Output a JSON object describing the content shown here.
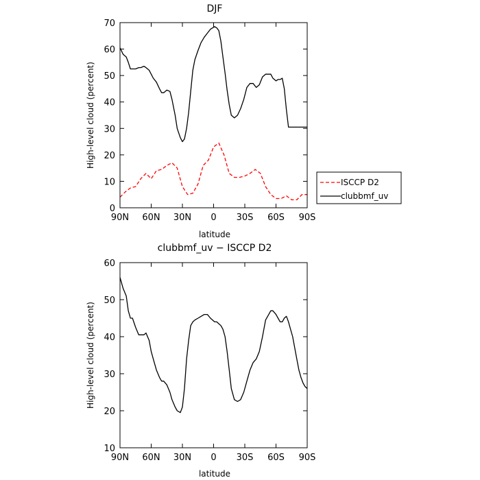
{
  "chart_data": [
    {
      "type": "line",
      "title": "DJF",
      "xlabel": "latitude",
      "ylabel": "High-level cloud (percent)",
      "xlim": [
        90,
        -90
      ],
      "ylim": [
        0,
        70
      ],
      "x_ticks": [
        90,
        60,
        30,
        0,
        -30,
        -60,
        -90
      ],
      "x_tick_labels": [
        "90N",
        "60N",
        "30N",
        "0",
        "30S",
        "60S",
        "90S"
      ],
      "y_ticks": [
        0,
        10,
        20,
        30,
        40,
        50,
        60,
        70
      ],
      "y_tick_labels": [
        "0",
        "10",
        "20",
        "30",
        "40",
        "50",
        "60",
        "70"
      ],
      "legend_position": "right, outside plot",
      "series": [
        {
          "name": "ISCCP D2",
          "color": "#ff0000",
          "dash": "dashed",
          "x": [
            90,
            85,
            80,
            75,
            70,
            65,
            60,
            55,
            50,
            45,
            40,
            35,
            30,
            25,
            20,
            15,
            10,
            5,
            0,
            -5,
            -10,
            -15,
            -20,
            -25,
            -30,
            -35,
            -40,
            -45,
            -50,
            -55,
            -60,
            -65,
            -70,
            -75,
            -80,
            -85,
            -90
          ],
          "values": [
            4,
            6,
            7.5,
            8,
            11,
            13,
            11,
            14,
            14.5,
            16,
            17,
            15,
            8,
            5,
            5.5,
            9,
            16,
            18,
            23,
            24.5,
            20,
            13,
            11.5,
            11.5,
            12,
            13,
            14.5,
            13,
            8,
            5,
            3.5,
            3.5,
            4.5,
            3,
            3,
            5,
            5
          ]
        },
        {
          "name": "clubbmf_uv",
          "color": "#000000",
          "dash": "solid",
          "x": [
            90,
            87,
            84,
            82,
            80,
            78,
            75,
            72,
            70,
            67,
            65,
            62,
            60,
            58,
            55,
            52,
            50,
            48,
            45,
            42,
            40,
            37,
            35,
            32,
            30,
            28,
            26,
            24,
            22,
            20,
            18,
            15,
            12,
            9,
            6,
            3,
            1,
            -1,
            -3,
            -5,
            -7,
            -9,
            -11,
            -13,
            -15,
            -17,
            -20,
            -23,
            -26,
            -29,
            -32,
            -35,
            -38,
            -41,
            -44,
            -47,
            -50,
            -53,
            -55,
            -57,
            -60,
            -62,
            -64,
            -66,
            -68,
            -70,
            -72,
            -74,
            -76,
            -78,
            -80,
            -82,
            -84,
            -86,
            -88,
            -90
          ],
          "values": [
            60.5,
            58,
            57,
            55,
            52.5,
            52.5,
            52.5,
            53,
            53,
            53.5,
            53,
            52,
            50.5,
            49,
            47.5,
            45,
            43.5,
            43.5,
            44.5,
            44,
            41,
            35,
            30,
            26.5,
            25,
            26,
            30,
            36,
            44,
            52,
            56,
            59.5,
            62.5,
            64.5,
            66,
            67.5,
            68,
            68.5,
            68,
            67,
            63,
            57,
            51,
            44.5,
            39,
            35,
            34,
            35,
            37.5,
            41,
            45.5,
            47,
            47,
            45.5,
            46.5,
            49.5,
            50.5,
            50.5,
            50.5,
            49,
            48,
            48.5,
            48.5,
            49,
            45,
            37,
            30.5,
            30.5,
            30.5,
            30.5,
            30.5,
            30.5,
            30.5,
            30.5,
            30.5,
            30.5
          ]
        }
      ]
    },
    {
      "type": "line",
      "title": "clubbmf_uv − ISCCP D2",
      "xlabel": "latitude",
      "ylabel": "High-level cloud (percent)",
      "xlim": [
        90,
        -90
      ],
      "ylim": [
        10,
        60
      ],
      "x_ticks": [
        90,
        60,
        30,
        0,
        -30,
        -60,
        -90
      ],
      "x_tick_labels": [
        "90N",
        "60N",
        "30N",
        "0",
        "30S",
        "60S",
        "90S"
      ],
      "y_ticks": [
        10,
        20,
        30,
        40,
        50,
        60
      ],
      "y_tick_labels": [
        "10",
        "20",
        "30",
        "40",
        "50",
        "60"
      ],
      "series": [
        {
          "color": "#000000",
          "dash": "solid",
          "x": [
            90,
            87,
            84,
            82,
            80,
            78,
            75,
            72,
            70,
            67,
            65,
            62,
            60,
            58,
            55,
            52,
            50,
            48,
            45,
            42,
            40,
            37,
            35,
            32,
            30,
            28,
            26,
            24,
            22,
            20,
            18,
            15,
            12,
            9,
            6,
            3,
            1,
            -1,
            -3,
            -5,
            -7,
            -9,
            -11,
            -13,
            -15,
            -17,
            -20,
            -23,
            -26,
            -29,
            -32,
            -35,
            -38,
            -41,
            -44,
            -47,
            -50,
            -53,
            -55,
            -57,
            -60,
            -62,
            -64,
            -66,
            -68,
            -70,
            -72,
            -74,
            -76,
            -78,
            -80,
            -82,
            -84,
            -86,
            -88,
            -90
          ],
          "values": [
            56,
            53,
            51,
            47,
            45,
            45,
            42.5,
            40.5,
            40.5,
            40.5,
            41,
            39,
            36,
            34,
            31,
            29,
            28,
            28,
            27,
            25,
            23,
            21,
            20,
            19.5,
            21,
            26,
            34,
            39,
            43,
            44,
            44.5,
            45,
            45.5,
            46,
            46,
            45,
            44.5,
            44,
            44,
            43.5,
            43,
            42,
            40,
            36,
            31,
            26,
            23,
            22.5,
            23,
            25,
            28,
            31,
            33,
            34,
            36,
            40,
            44.5,
            46,
            47,
            47,
            46,
            45,
            44,
            44,
            45,
            45.5,
            44,
            42,
            40,
            37,
            34,
            31,
            29,
            27.5,
            26.5,
            26
          ]
        }
      ]
    }
  ]
}
